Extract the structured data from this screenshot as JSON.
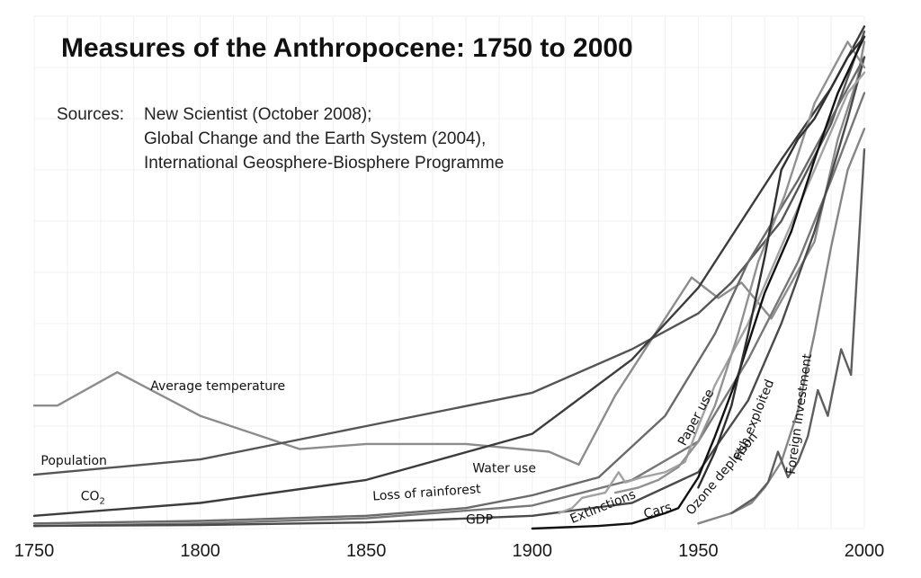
{
  "chart_data": {
    "type": "line",
    "title": "Measures of the Anthropocene:  1750 to 2000",
    "sources": {
      "label": "Sources:",
      "lines": [
        "New Scientist (October 2008);",
        "Global Change and the Earth System (2004),",
        "International Geosphere-Biosphere Programme"
      ]
    },
    "xlim": [
      1750,
      2000
    ],
    "ylim": [
      0,
      100
    ],
    "x_ticks": [
      "1750",
      "1800",
      "1850",
      "1900",
      "1950",
      "2000"
    ],
    "grid": true,
    "legend": "none",
    "series": [
      {
        "name": "Average temperature",
        "color": "#8c8c8c",
        "points": [
          [
            1750,
            24
          ],
          [
            1757,
            24
          ],
          [
            1775,
            30.5
          ],
          [
            1800,
            22
          ],
          [
            1830,
            15.5
          ],
          [
            1850,
            16.5
          ],
          [
            1880,
            16.5
          ],
          [
            1905,
            15
          ],
          [
            1914,
            12.5
          ],
          [
            1925,
            26
          ],
          [
            1948,
            49
          ],
          [
            1956,
            45
          ],
          [
            1963,
            48
          ],
          [
            1972,
            41
          ],
          [
            1985,
            56
          ],
          [
            1992,
            76
          ],
          [
            1998,
            88
          ],
          [
            2000,
            95
          ]
        ]
      },
      {
        "name": "Population",
        "color": "#555555",
        "points": [
          [
            1750,
            10.5
          ],
          [
            1800,
            13.5
          ],
          [
            1850,
            20
          ],
          [
            1900,
            26.5
          ],
          [
            1930,
            35
          ],
          [
            1950,
            42
          ],
          [
            1960,
            48
          ],
          [
            1975,
            60
          ],
          [
            1990,
            79
          ],
          [
            2000,
            97
          ]
        ]
      },
      {
        "name": "CO2",
        "color": "#3c3c3c",
        "points": [
          [
            1750,
            2.5
          ],
          [
            1800,
            5
          ],
          [
            1850,
            9.5
          ],
          [
            1900,
            18.5
          ],
          [
            1930,
            33
          ],
          [
            1950,
            47
          ],
          [
            1975,
            72
          ],
          [
            1990,
            86
          ],
          [
            2000,
            98
          ]
        ]
      },
      {
        "name": "Water use",
        "color": "#6a6a6a",
        "points": [
          [
            1750,
            1
          ],
          [
            1800,
            1.5
          ],
          [
            1850,
            2.5
          ],
          [
            1880,
            4
          ],
          [
            1900,
            6.5
          ],
          [
            1920,
            10
          ],
          [
            1940,
            22
          ],
          [
            1955,
            38
          ],
          [
            1965,
            52
          ],
          [
            1980,
            68
          ],
          [
            1990,
            80
          ],
          [
            2000,
            92
          ]
        ]
      },
      {
        "name": "Loss of rainforest",
        "color": "#777777",
        "points": [
          [
            1750,
            0.5
          ],
          [
            1800,
            1
          ],
          [
            1850,
            2
          ],
          [
            1900,
            4.5
          ],
          [
            1930,
            9.5
          ],
          [
            1950,
            17
          ],
          [
            1965,
            33
          ],
          [
            1980,
            52
          ],
          [
            1990,
            68
          ],
          [
            2000,
            85
          ]
        ]
      },
      {
        "name": "GDP",
        "color": "#4a4a4a",
        "points": [
          [
            1750,
            0.5
          ],
          [
            1800,
            0.7
          ],
          [
            1850,
            1.2
          ],
          [
            1900,
            2.5
          ],
          [
            1930,
            5
          ],
          [
            1950,
            11
          ],
          [
            1965,
            25
          ],
          [
            1975,
            40
          ],
          [
            1985,
            58
          ],
          [
            1995,
            80
          ],
          [
            2000,
            92
          ]
        ]
      },
      {
        "name": "Extinctions",
        "color": "#a2a2a2",
        "points": [
          [
            1908,
            3
          ],
          [
            1912,
            4
          ],
          [
            1915,
            6
          ],
          [
            1922,
            7
          ],
          [
            1926,
            11
          ],
          [
            1928,
            9
          ],
          [
            1933,
            10
          ],
          [
            1940,
            11
          ],
          [
            1946,
            13
          ],
          [
            1950,
            20
          ],
          [
            1955,
            28
          ],
          [
            1965,
            40
          ],
          [
            1975,
            55
          ],
          [
            1985,
            70
          ],
          [
            1995,
            85
          ],
          [
            2000,
            89
          ]
        ]
      },
      {
        "name": "Paper use",
        "color": "#919191",
        "points": [
          [
            1925,
            7
          ],
          [
            1932,
            8
          ],
          [
            1938,
            9.5
          ],
          [
            1944,
            12
          ],
          [
            1950,
            17
          ],
          [
            1955,
            24
          ],
          [
            1962,
            38
          ],
          [
            1968,
            52
          ],
          [
            1976,
            65
          ],
          [
            1985,
            83
          ],
          [
            1995,
            95
          ],
          [
            2000,
            90
          ]
        ]
      },
      {
        "name": "Cars",
        "color": "#111111",
        "points": [
          [
            1900,
            0
          ],
          [
            1920,
            0.5
          ],
          [
            1930,
            1
          ],
          [
            1940,
            3
          ],
          [
            1944,
            4
          ],
          [
            1950,
            10
          ],
          [
            1955,
            18
          ],
          [
            1962,
            30
          ],
          [
            1970,
            46
          ],
          [
            1978,
            58
          ],
          [
            1985,
            72
          ],
          [
            1992,
            85
          ],
          [
            2000,
            96
          ]
        ]
      },
      {
        "name": "Fish exploited",
        "color": "#303030",
        "points": [
          [
            1950,
            8
          ],
          [
            1955,
            15
          ],
          [
            1960,
            24
          ],
          [
            1965,
            38
          ],
          [
            1970,
            53
          ],
          [
            1975,
            70
          ],
          [
            1980,
            76
          ],
          [
            1985,
            80
          ],
          [
            1990,
            86
          ],
          [
            1995,
            92
          ],
          [
            2000,
            96
          ]
        ]
      },
      {
        "name": "Ozone depletion",
        "color": "#868686",
        "points": [
          [
            1950,
            1
          ],
          [
            1960,
            3
          ],
          [
            1966,
            5
          ],
          [
            1970,
            8
          ],
          [
            1975,
            13
          ],
          [
            1980,
            23
          ],
          [
            1985,
            38
          ],
          [
            1990,
            55
          ],
          [
            1995,
            70
          ],
          [
            2000,
            78
          ]
        ]
      },
      {
        "name": "Foreign investment",
        "color": "#5e5e5e",
        "points": [
          [
            1960,
            3
          ],
          [
            1967,
            6
          ],
          [
            1971,
            9
          ],
          [
            1974,
            15
          ],
          [
            1977,
            10
          ],
          [
            1980,
            13
          ],
          [
            1983,
            18
          ],
          [
            1986,
            27
          ],
          [
            1989,
            22
          ],
          [
            1993,
            35
          ],
          [
            1996,
            30
          ],
          [
            2000,
            74
          ]
        ]
      }
    ],
    "annotations": [
      {
        "text": "Average temperature",
        "x": 1785,
        "y": 27,
        "angle": 0
      },
      {
        "text": "Population",
        "x": 1752,
        "y": 12.5,
        "angle": 0
      },
      {
        "text": "CO",
        "sub": "2",
        "x": 1764,
        "y": 5.5,
        "angle": 0
      },
      {
        "text": "Water use",
        "x": 1882,
        "y": 11,
        "angle": 0
      },
      {
        "text": "Loss of rainforest",
        "x": 1852,
        "y": 5.5,
        "angle": -4
      },
      {
        "text": "GDP",
        "x": 1880,
        "y": 1,
        "angle": 0
      },
      {
        "text": "Extinctions",
        "x": 1912,
        "y": 1,
        "angle": -22
      },
      {
        "text": "Cars",
        "x": 1934,
        "y": 2,
        "angle": -16
      },
      {
        "text": "Paper use",
        "x": 1946,
        "y": 16,
        "angle": -62
      },
      {
        "text": "Fish exploited",
        "x": 1963,
        "y": 13,
        "angle": -68
      },
      {
        "text": "Ozone depletion",
        "x": 1948,
        "y": 2.5,
        "angle": -50
      },
      {
        "text": "Foreign investment",
        "x": 1979,
        "y": 10.5,
        "angle": -82
      }
    ]
  }
}
